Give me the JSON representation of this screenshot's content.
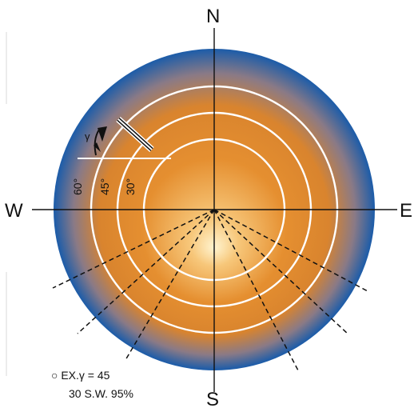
{
  "compass": {
    "north": "N",
    "south": "S",
    "east": "E",
    "west": "W"
  },
  "rings": {
    "ring_60": "60°",
    "ring_45": "45°",
    "ring_30": "30°"
  },
  "panel_label": "γ",
  "example": {
    "line1": "○ EX.γ = 45",
    "line2": "30 S.W. 95%"
  },
  "colors": {
    "outer_sky": "#1f5da8",
    "mid_orange": "#e1892e",
    "center_glow": "#fff4d0"
  }
}
